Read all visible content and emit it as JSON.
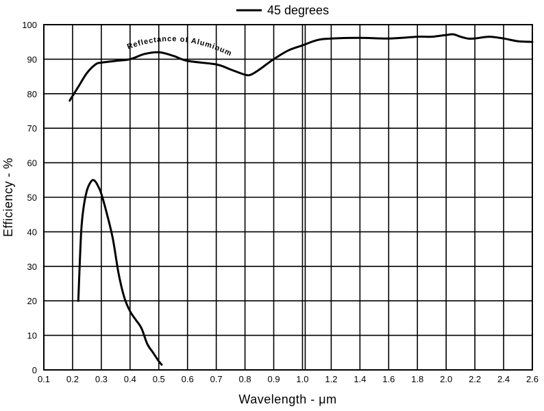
{
  "chart_data": {
    "type": "line",
    "title": "",
    "xlabel": "Wavelength - μm",
    "ylabel": "Efficiency - %",
    "ylim": [
      0,
      100
    ],
    "grid": true,
    "legend_position": "top-center",
    "x_ticks": [
      "0.1",
      "0.2",
      "0.3",
      "0.4",
      "0.5",
      "0.6",
      "0.7",
      "0.8",
      "0.9",
      "1.0",
      "1.2",
      "1.4",
      "1.6",
      "1.8",
      "2.0",
      "2.2",
      "2.4",
      "2.6"
    ],
    "y_ticks": [
      0,
      10,
      20,
      30,
      40,
      50,
      60,
      70,
      80,
      90,
      100
    ],
    "legend": [
      {
        "name": "45 degrees"
      }
    ],
    "annotations": [
      {
        "text": "Reflectance of Aluminum"
      }
    ],
    "series": [
      {
        "name": "Reflectance of Aluminum",
        "x": [
          0.19,
          0.22,
          0.25,
          0.28,
          0.3,
          0.35,
          0.4,
          0.45,
          0.5,
          0.55,
          0.6,
          0.7,
          0.75,
          0.8,
          0.82,
          0.85,
          0.9,
          0.95,
          1.0,
          1.1,
          1.2,
          1.4,
          1.6,
          1.8,
          1.9,
          2.0,
          2.05,
          2.1,
          2.15,
          2.2,
          2.3,
          2.4,
          2.5,
          2.6
        ],
        "y": [
          78,
          82,
          86,
          88.5,
          89,
          89.5,
          90,
          91.5,
          92,
          91,
          89.5,
          88.5,
          87,
          85.5,
          85.5,
          87,
          90,
          92.5,
          94,
          95.5,
          96,
          96.2,
          96,
          96.5,
          96.5,
          97,
          97.2,
          96.5,
          96,
          96,
          96.5,
          96,
          95.2,
          95
        ]
      },
      {
        "name": "45 degrees",
        "x": [
          0.22,
          0.23,
          0.24,
          0.25,
          0.26,
          0.27,
          0.28,
          0.29,
          0.3,
          0.32,
          0.34,
          0.36,
          0.38,
          0.4,
          0.42,
          0.44,
          0.46,
          0.48,
          0.5,
          0.51
        ],
        "y": [
          20,
          40,
          48,
          52,
          54,
          55,
          54.5,
          53,
          51,
          45,
          38,
          28,
          21,
          17,
          14.5,
          12,
          7.5,
          5,
          2.5,
          1.5
        ]
      }
    ]
  }
}
